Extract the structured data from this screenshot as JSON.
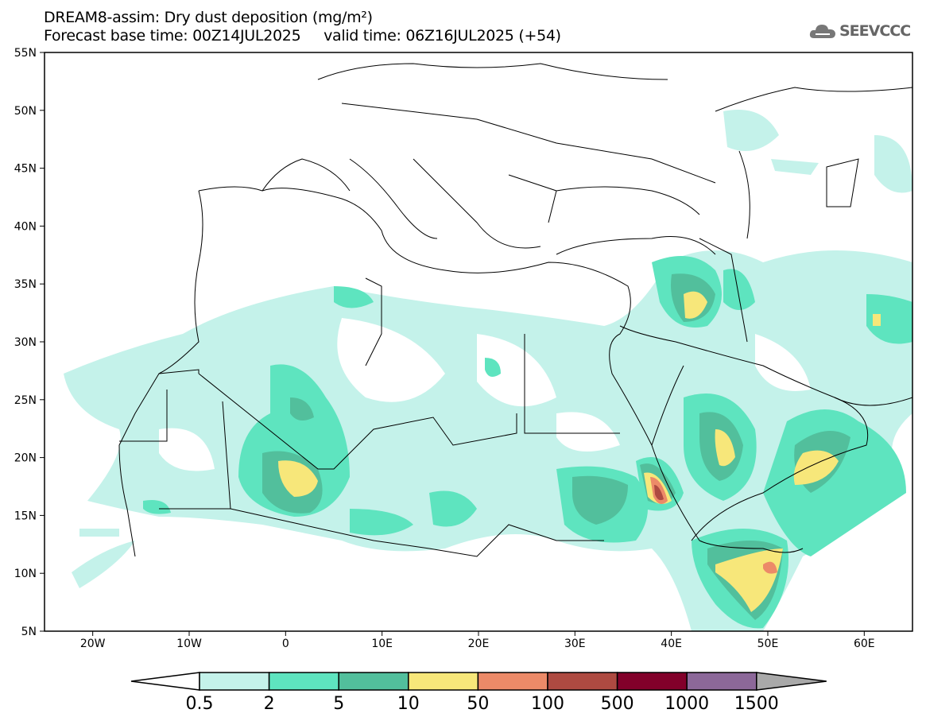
{
  "header": {
    "title": "DREAM8-assim: Dry dust deposition (mg/m²)",
    "subtitle_base": "Forecast base time: 00Z14JUL2025",
    "subtitle_valid": "valid time: 06Z16JUL2025 (+54)",
    "logo": "SEEVCCC"
  },
  "map": {
    "lat_labels": [
      "55N",
      "50N",
      "45N",
      "40N",
      "35N",
      "30N",
      "25N",
      "20N",
      "15N",
      "10N",
      "5N"
    ],
    "lon_labels": [
      "20W",
      "10W",
      "0",
      "10E",
      "20E",
      "30E",
      "40E",
      "50E",
      "60E"
    ]
  },
  "colorbar": {
    "ticks": [
      "0.5",
      "2",
      "5",
      "10",
      "50",
      "100",
      "500",
      "1000",
      "1500"
    ],
    "colors": [
      "#c4f2ea",
      "#5ee4bf",
      "#52bf9c",
      "#f7e77a",
      "#ec8a68",
      "#ae4a41",
      "#82002a",
      "#8c6899",
      "#a9a9a9"
    ]
  }
}
